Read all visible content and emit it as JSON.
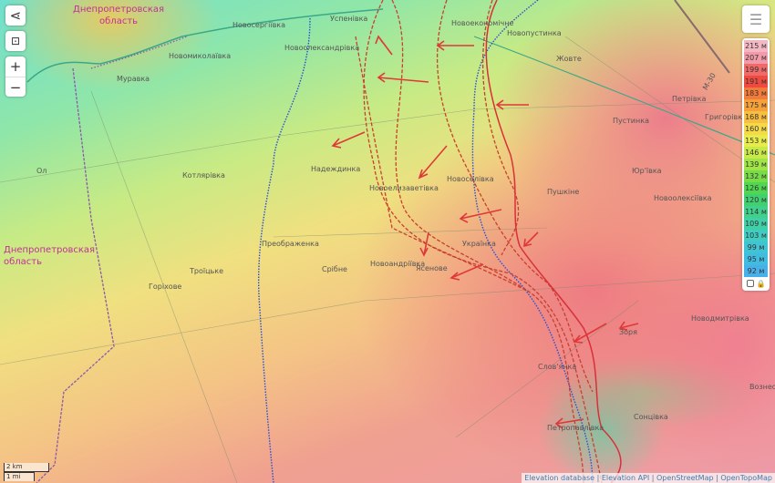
{
  "regions": {
    "north": "Днепропетровская\nобласть",
    "west": "Днепропетровская\nобласть"
  },
  "places": [
    "Успенівка",
    "Новосергіївка",
    "Новоолександрівка",
    "Новомиколаївка",
    "Муравка",
    "Новопустинка",
    "Новоекономічне",
    "Жовте",
    "Петрівка",
    "Пустинка",
    "Григорівка",
    "Юр'ївка",
    "Пушкіне",
    "Новоолексіївка",
    "Котлярівка",
    "Надеждинка",
    "Новоелизаветівка",
    "Новоселівка",
    "Преображенка",
    "Срібне",
    "Троїцьке",
    "Горіхове",
    "Новоандріївка",
    "Ясенове",
    "Українка",
    "Новодмитрівка",
    "Зоря",
    "Слов'янка",
    "Петропавлівка",
    "Сонцівка",
    "Вознесенка",
    "Ол"
  ],
  "road_label": "М-30",
  "controls": {
    "share_icon": "share-icon",
    "locate_icon": "locate-icon",
    "zoom_in": "+",
    "zoom_out": "−"
  },
  "legend": {
    "items": [
      {
        "label": "215 м",
        "color": "#f4b8c4"
      },
      {
        "label": "207 м",
        "color": "#f29aa8"
      },
      {
        "label": "199 м",
        "color": "#f06a6a"
      },
      {
        "label": "191 м",
        "color": "#ee4a40"
      },
      {
        "label": "183 м",
        "color": "#f27a3a"
      },
      {
        "label": "175 м",
        "color": "#f6a03a"
      },
      {
        "label": "168 м",
        "color": "#f8be40"
      },
      {
        "label": "160 м",
        "color": "#f4da48"
      },
      {
        "label": "153 м",
        "color": "#e8ec4a"
      },
      {
        "label": "146 м",
        "color": "#c8ea48"
      },
      {
        "label": "139 м",
        "color": "#a0e448"
      },
      {
        "label": "132 м",
        "color": "#78dc48"
      },
      {
        "label": "126 м",
        "color": "#50d650"
      },
      {
        "label": "120 м",
        "color": "#40d070"
      },
      {
        "label": "114 м",
        "color": "#40d08c"
      },
      {
        "label": "109 м",
        "color": "#40d0a8"
      },
      {
        "label": "103 м",
        "color": "#40ccc0"
      },
      {
        "label": "99 м",
        "color": "#40c4d4"
      },
      {
        "label": "95 м",
        "color": "#40bce0"
      },
      {
        "label": "92 м",
        "color": "#48b0e8"
      }
    ],
    "lock_icon": "lock-icon",
    "checkbox_icon": "checkbox-icon"
  },
  "layers_icon": "layers-icon",
  "scale": {
    "km": "2 km",
    "mi": "1 mi"
  },
  "attribution": [
    "Elevation database",
    "Elevation API",
    "OpenStreetMap",
    "OpenTopoMap"
  ],
  "colors": {
    "front": "#d8303a",
    "border": "#8a5aa8",
    "line_blue": "#2a50d0"
  }
}
